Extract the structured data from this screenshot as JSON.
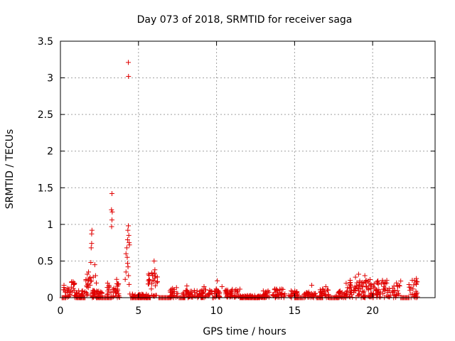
{
  "chart_data": {
    "type": "scatter",
    "title": "Day 073 of 2018, SRMTID for receiver saga",
    "xlabel": "GPS time / hours",
    "ylabel": "SRMTID / TECUs",
    "xlim": [
      0,
      24
    ],
    "ylim": [
      0,
      3.5
    ],
    "x_ticks": [
      0,
      5,
      10,
      15,
      20
    ],
    "y_ticks": [
      0,
      0.5,
      1,
      1.5,
      2,
      2.5,
      3,
      3.5
    ],
    "x_tick_labels": [
      "0",
      "5",
      "10",
      "15",
      "20"
    ],
    "y_tick_labels": [
      "0",
      "0.5",
      "1",
      "1.5",
      "2",
      "2.5",
      "3",
      "3.5"
    ],
    "grid": true,
    "marker": "+",
    "color": "#e00000",
    "clusters": [
      {
        "x_start": 0.2,
        "x_end": 0.9,
        "y_max": 0.22
      },
      {
        "x_start": 0.9,
        "x_end": 1.6,
        "y_max": 0.1
      },
      {
        "x_start": 1.6,
        "x_end": 2.0,
        "y_max": 0.35
      },
      {
        "x_start": 2.0,
        "x_end": 2.8,
        "y_max": 0.1
      },
      {
        "x_start": 3.0,
        "x_end": 3.8,
        "y_max": 0.2
      },
      {
        "x_start": 4.6,
        "x_end": 5.6,
        "y_max": 0.05
      },
      {
        "x_start": 5.6,
        "x_end": 6.3,
        "y_max": 0.35
      },
      {
        "x_start": 7.0,
        "x_end": 7.6,
        "y_max": 0.14
      },
      {
        "x_start": 7.8,
        "x_end": 9.0,
        "y_max": 0.1
      },
      {
        "x_start": 9.0,
        "x_end": 10.2,
        "y_max": 0.12
      },
      {
        "x_start": 10.5,
        "x_end": 11.5,
        "y_max": 0.12
      },
      {
        "x_start": 11.5,
        "x_end": 12.8,
        "y_max": 0.03
      },
      {
        "x_start": 12.8,
        "x_end": 13.4,
        "y_max": 0.1
      },
      {
        "x_start": 13.6,
        "x_end": 14.4,
        "y_max": 0.14
      },
      {
        "x_start": 14.6,
        "x_end": 15.2,
        "y_max": 0.1
      },
      {
        "x_start": 15.6,
        "x_end": 16.4,
        "y_max": 0.08
      },
      {
        "x_start": 16.6,
        "x_end": 17.2,
        "y_max": 0.12
      },
      {
        "x_start": 17.6,
        "x_end": 18.3,
        "y_max": 0.1
      },
      {
        "x_start": 18.3,
        "x_end": 21.8,
        "y_max": 0.25
      },
      {
        "x_start": 22.3,
        "x_end": 22.9,
        "y_max": 0.24
      }
    ],
    "peaks": [
      {
        "x": 1.8,
        "y": 0.35
      },
      {
        "x": 1.95,
        "y": 0.48
      },
      {
        "x": 1.97,
        "y": 0.68
      },
      {
        "x": 2.0,
        "y": 0.74
      },
      {
        "x": 2.0,
        "y": 0.87
      },
      {
        "x": 2.02,
        "y": 0.92
      },
      {
        "x": 2.2,
        "y": 0.45
      },
      {
        "x": 2.25,
        "y": 0.3
      },
      {
        "x": 2.3,
        "y": 0.2
      },
      {
        "x": 2.1,
        "y": 0.28
      },
      {
        "x": 3.3,
        "y": 1.42
      },
      {
        "x": 3.27,
        "y": 1.2
      },
      {
        "x": 3.32,
        "y": 1.17
      },
      {
        "x": 3.3,
        "y": 1.06
      },
      {
        "x": 3.28,
        "y": 0.97
      },
      {
        "x": 3.55,
        "y": 0.12
      },
      {
        "x": 3.6,
        "y": 0.25
      },
      {
        "x": 4.2,
        "y": 0.6
      },
      {
        "x": 4.25,
        "y": 0.68
      },
      {
        "x": 4.3,
        "y": 0.79
      },
      {
        "x": 4.32,
        "y": 0.92
      },
      {
        "x": 4.35,
        "y": 0.98
      },
      {
        "x": 4.38,
        "y": 0.85
      },
      {
        "x": 4.4,
        "y": 0.75
      },
      {
        "x": 4.42,
        "y": 0.72
      },
      {
        "x": 4.28,
        "y": 0.55
      },
      {
        "x": 4.3,
        "y": 0.47
      },
      {
        "x": 4.33,
        "y": 0.42
      },
      {
        "x": 4.2,
        "y": 0.35
      },
      {
        "x": 4.36,
        "y": 0.3
      },
      {
        "x": 4.4,
        "y": 0.18
      },
      {
        "x": 4.45,
        "y": 0.05
      },
      {
        "x": 4.35,
        "y": 3.21
      },
      {
        "x": 4.36,
        "y": 3.02
      },
      {
        "x": 4.15,
        "y": 0.25
      },
      {
        "x": 6.0,
        "y": 0.5
      },
      {
        "x": 6.05,
        "y": 0.38
      },
      {
        "x": 5.9,
        "y": 0.3
      },
      {
        "x": 8.1,
        "y": 0.16
      },
      {
        "x": 9.2,
        "y": 0.15
      },
      {
        "x": 10.05,
        "y": 0.23
      },
      {
        "x": 10.35,
        "y": 0.15
      },
      {
        "x": 16.1,
        "y": 0.17
      },
      {
        "x": 17.0,
        "y": 0.15
      },
      {
        "x": 19.1,
        "y": 0.32
      },
      {
        "x": 19.5,
        "y": 0.3
      },
      {
        "x": 18.9,
        "y": 0.28
      },
      {
        "x": 20.3,
        "y": 0.22
      },
      {
        "x": 20.9,
        "y": 0.2
      },
      {
        "x": 22.8,
        "y": 0.26
      }
    ],
    "zero_bands": [
      {
        "x_start": 0.1,
        "x_end": 0.35
      },
      {
        "x_start": 1.0,
        "x_end": 1.6
      },
      {
        "x_start": 2.3,
        "x_end": 3.3
      },
      {
        "x_start": 4.5,
        "x_end": 5.8
      },
      {
        "x_start": 6.3,
        "x_end": 7.1
      },
      {
        "x_start": 7.6,
        "x_end": 8.0
      },
      {
        "x_start": 11.5,
        "x_end": 12.8
      },
      {
        "x_start": 15.0,
        "x_end": 15.6
      },
      {
        "x_start": 16.4,
        "x_end": 16.8
      },
      {
        "x_start": 17.2,
        "x_end": 17.8
      },
      {
        "x_start": 21.8,
        "x_end": 22.3
      }
    ]
  }
}
